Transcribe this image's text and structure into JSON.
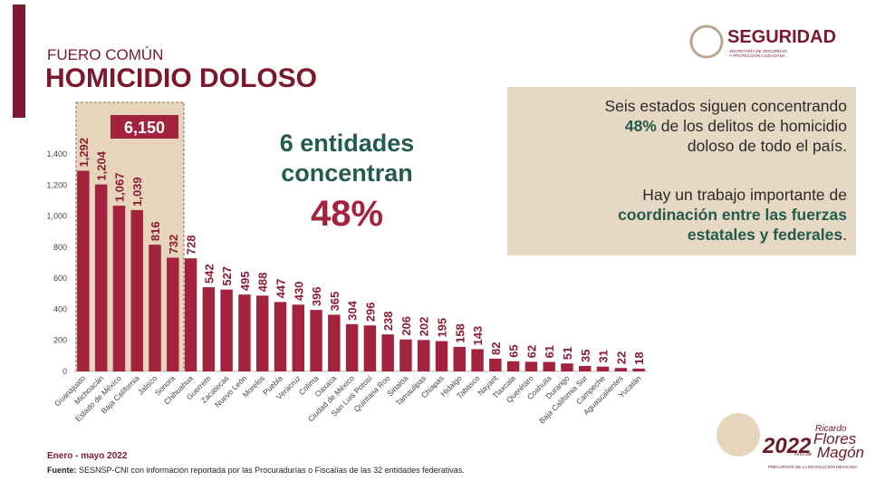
{
  "chart_data": {
    "type": "bar",
    "section": "FUERO COMÚN",
    "title": "HOMICIDIO DOLOSO",
    "categories": [
      "Guanajuato",
      "Michoacán",
      "Estado de México",
      "Baja California",
      "Jalisco",
      "Sonora",
      "Chihuahua",
      "Guerrero",
      "Zacatecas",
      "Nuevo León",
      "Morelos",
      "Puebla",
      "Veracruz",
      "Colima",
      "Oaxaca",
      "Ciudad de México",
      "San Luis Potosí",
      "Quintana Roo",
      "Sinaloa",
      "Tamaulipas",
      "Chiapas",
      "Hidalgo",
      "Tabasco",
      "Nayarit",
      "Tlaxcala",
      "Querétaro",
      "Coahuila",
      "Durango",
      "Baja California Sur",
      "Campeche",
      "Aguascalientes",
      "Yucatán"
    ],
    "values": [
      1292,
      1204,
      1067,
      1039,
      816,
      732,
      728,
      542,
      527,
      495,
      488,
      447,
      430,
      396,
      365,
      304,
      296,
      238,
      206,
      202,
      195,
      158,
      143,
      82,
      65,
      62,
      61,
      51,
      35,
      31,
      22,
      18
    ],
    "value_labels": [
      "1,292",
      "1,204",
      "1,067",
      "1,039",
      "816",
      "732",
      "728",
      "542",
      "527",
      "495",
      "488",
      "447",
      "430",
      "396",
      "365",
      "304",
      "296",
      "238",
      "206",
      "202",
      "195",
      "158",
      "143",
      "82",
      "65",
      "62",
      "61",
      "51",
      "35",
      "31",
      "22",
      "18"
    ],
    "color": "#a3233f",
    "ylim": [
      0,
      1400
    ],
    "yticks": [
      0,
      200,
      400,
      600,
      800,
      {
        "value": 1000,
        "label": "1,000"
      },
      {
        "value": 1200,
        "label": "1,200"
      },
      {
        "value": 1400,
        "label": "1,400"
      }
    ],
    "highlight_total": {
      "value": 6150,
      "label": "6,150"
    },
    "callout": [
      "6 entidades",
      "concentran",
      "48%"
    ],
    "period": "Enero - mayo 2022"
  },
  "panel": {
    "p1": [
      "Seis estados siguen concentrando",
      "48%",
      " de los delitos de homicidio",
      "doloso de todo el país."
    ],
    "p2": [
      "Hay un trabajo importante de",
      "coordinación entre las fuerzas",
      "estatales y federales",
      "."
    ]
  },
  "footer": {
    "source_label": "Fuente:",
    "source": " SESNSP-CNI con información reportada por las Procuradurías o Fiscalías de las 32 entidades federativas."
  },
  "logo": {
    "name": "SEGURIDAD",
    "subtitle1": "SECRETARÍA DE SEGURIDAD",
    "subtitle2": "Y PROTECCIÓN CIUDADANA"
  },
  "badge": {
    "year": "2022",
    "year_of": "Año de",
    "first": "Ricardo",
    "name1": "Flores",
    "name2": "Magón",
    "tagline": "PRECURSOR DE LA REVOLUCIÓN MEXICANA"
  }
}
